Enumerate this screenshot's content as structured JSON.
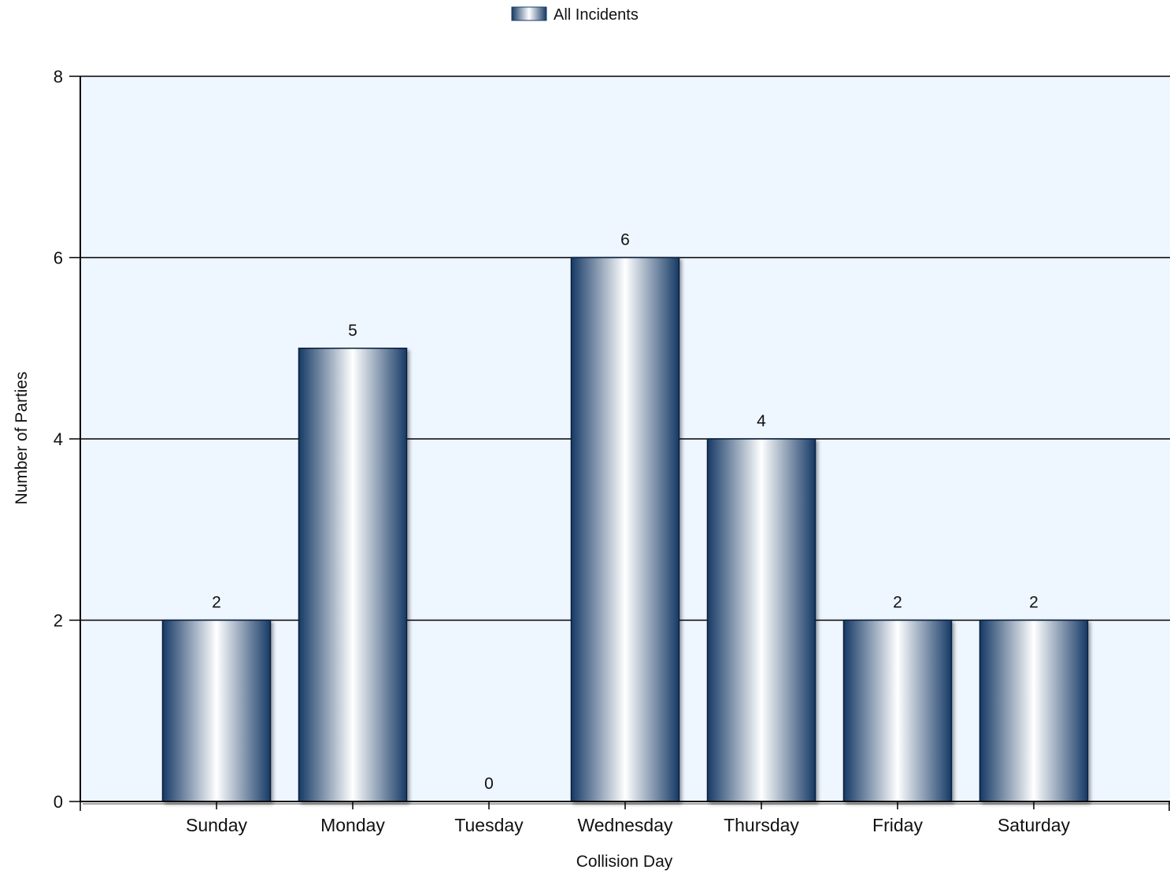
{
  "chart_data": {
    "type": "bar",
    "categories": [
      "Sunday",
      "Monday",
      "Tuesday",
      "Wednesday",
      "Thursday",
      "Friday",
      "Saturday"
    ],
    "series": [
      {
        "name": "All Incidents",
        "values": [
          2,
          5,
          0,
          6,
          4,
          2,
          2
        ]
      }
    ],
    "data_labels": [
      "2",
      "5",
      "0",
      "6",
      "4",
      "2",
      "2"
    ],
    "xlabel": "Collision Day",
    "ylabel": "Number of Parties",
    "ylim": [
      0,
      8
    ],
    "yticks": [
      0,
      2,
      4,
      6,
      8
    ],
    "grid": true,
    "legend_position": "top-center",
    "colors": {
      "plot_background": "#eef6ff",
      "bar_dark": "#163a66",
      "bar_light": "#ffffff",
      "grid": "#000000"
    }
  }
}
